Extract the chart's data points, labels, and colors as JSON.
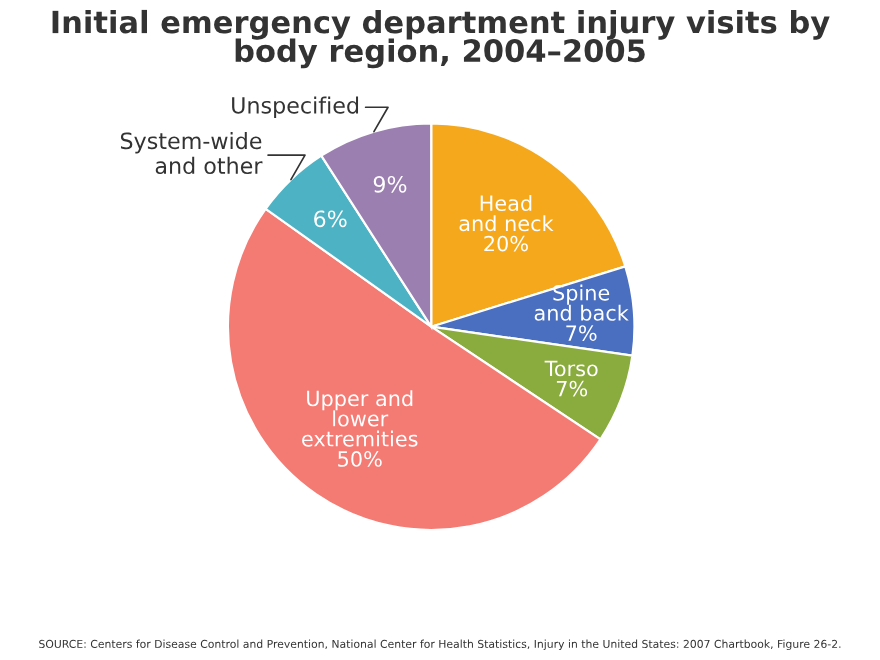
{
  "chart_data": {
    "type": "pie",
    "title": "Initial emergency department injury visits by\nbody region, 2004–2005",
    "categories": [
      "Head\nand neck",
      "Spine\nand back",
      "Torso",
      "Upper and\nlower\nextremities",
      "System-wide\nand other",
      "Unspecified"
    ],
    "values": [
      20,
      7,
      7,
      50,
      6,
      9
    ],
    "colors": [
      "#f5a81c",
      "#4a6fc0",
      "#8aac3e",
      "#f47b73",
      "#4db3c4",
      "#9b7fb0"
    ],
    "value_labels": [
      "20%",
      "7%",
      "7%",
      "50%",
      "6%",
      "9%"
    ],
    "annotations": [
      "SOURCE: Centers for Disease Control and Prevention, National Center for Health Statistics, Injury in the United States: 2007 Chartbook, Figure 26-2."
    ]
  }
}
